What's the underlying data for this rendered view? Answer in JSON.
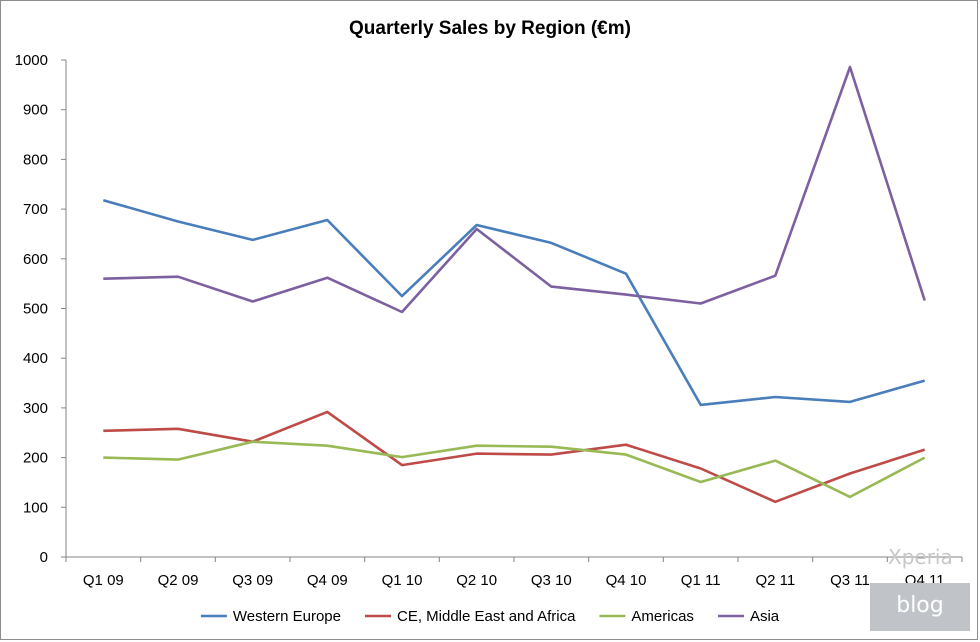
{
  "chart_data": {
    "type": "line",
    "title": "Quarterly Sales by Region (€m)",
    "xlabel": "",
    "ylabel": "",
    "categories": [
      "Q1 09",
      "Q2 09",
      "Q3 09",
      "Q4 09",
      "Q1 10",
      "Q2 10",
      "Q3 10",
      "Q4 10",
      "Q1 11",
      "Q2 11",
      "Q3 11",
      "Q4 11"
    ],
    "ylim": [
      0,
      1000
    ],
    "yticks": [
      0,
      100,
      200,
      300,
      400,
      500,
      600,
      700,
      800,
      900,
      1000
    ],
    "grid": false,
    "legend_position": "bottom",
    "series": [
      {
        "name": "Western Europe",
        "color": "#4a7ebb",
        "values": [
          718,
          675,
          638,
          678,
          525,
          668,
          632,
          570,
          306,
          322,
          312,
          355
        ]
      },
      {
        "name": "CE, Middle East and Africa",
        "color": "#be4b48",
        "values": [
          254,
          258,
          232,
          292,
          185,
          208,
          206,
          226,
          178,
          111,
          168,
          216
        ]
      },
      {
        "name": "Americas",
        "color": "#98b954",
        "values": [
          200,
          196,
          232,
          224,
          201,
          224,
          222,
          206,
          151,
          194,
          121,
          200
        ]
      },
      {
        "name": "Asia",
        "color": "#7d60a0",
        "values": [
          560,
          564,
          514,
          562,
          493,
          660,
          544,
          528,
          510,
          566,
          986,
          516
        ]
      }
    ]
  },
  "watermark": {
    "top": "Xperia",
    "bottom": "blog"
  }
}
